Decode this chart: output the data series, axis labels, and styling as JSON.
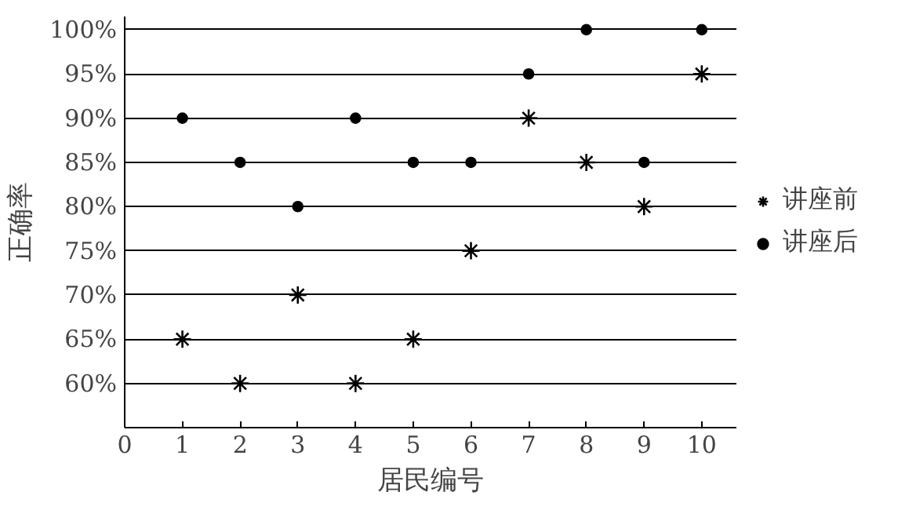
{
  "chart_data": {
    "type": "scatter",
    "xlabel": "居民编号",
    "ylabel": "正确率",
    "x": [
      1,
      2,
      3,
      4,
      5,
      6,
      7,
      8,
      9,
      10
    ],
    "series": [
      {
        "name": "讲座前",
        "color": "#000000",
        "marker": "cross",
        "values": [
          65,
          60,
          70,
          60,
          65,
          75,
          90,
          85,
          80,
          95
        ]
      },
      {
        "name": "讲座后",
        "color": "#000000",
        "marker": "circle",
        "values": [
          90,
          85,
          80,
          90,
          85,
          85,
          95,
          100,
          85,
          100
        ]
      }
    ],
    "xlim": [
      0,
      10.6
    ],
    "xticks": [
      0,
      1,
      2,
      3,
      4,
      5,
      6,
      7,
      8,
      9,
      10
    ],
    "ylim": [
      55,
      101.5
    ],
    "yticks": [
      {
        "value": 60,
        "label": "60%"
      },
      {
        "value": 65,
        "label": "65%"
      },
      {
        "value": 70,
        "label": "70%"
      },
      {
        "value": 75,
        "label": "75%"
      },
      {
        "value": 80,
        "label": "80%"
      },
      {
        "value": 85,
        "label": "85%"
      },
      {
        "value": 90,
        "label": "90%"
      },
      {
        "value": 95,
        "label": "95%"
      },
      {
        "value": 100,
        "label": "100%"
      }
    ],
    "grid": "y",
    "legend": "right"
  }
}
